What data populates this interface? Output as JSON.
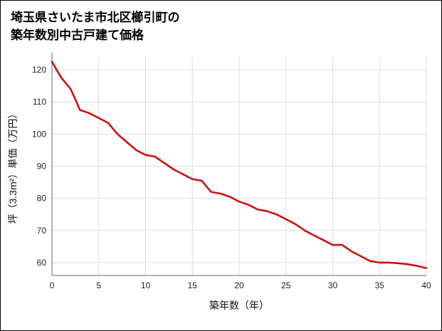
{
  "title": {
    "line1": "埼玉県さいたま市北区櫛引町の",
    "line2": "築年数別中古戸建て価格"
  },
  "chart_data": {
    "type": "line",
    "title": "埼玉県さいたま市北区櫛引町の築年数別中古戸建て価格",
    "xlabel": "築年数（年）",
    "ylabel": "坪（3.3m²）単価（万円）",
    "xlim": [
      0,
      40
    ],
    "ylim": [
      56,
      124
    ],
    "xticks": [
      0,
      5,
      10,
      15,
      20,
      25,
      30,
      35,
      40
    ],
    "yticks": [
      60,
      70,
      80,
      90,
      100,
      110,
      120
    ],
    "grid": true,
    "legend": "none",
    "line_color": "#cc1111",
    "grid_color": "#dddddd",
    "axis_color": "#999999",
    "x": [
      0,
      1,
      2,
      3,
      4,
      5,
      6,
      7,
      8,
      9,
      10,
      11,
      12,
      13,
      14,
      15,
      16,
      17,
      18,
      19,
      20,
      21,
      22,
      23,
      24,
      25,
      26,
      27,
      28,
      29,
      30,
      31,
      32,
      33,
      34,
      35,
      36,
      37,
      38,
      39,
      40
    ],
    "values": [
      122.5,
      117.5,
      114,
      107.5,
      106.5,
      105,
      103.5,
      100,
      97.5,
      95,
      93.5,
      93,
      91,
      89,
      87.5,
      86,
      85.5,
      82,
      81.5,
      80.5,
      79,
      78,
      76.5,
      76,
      75,
      73.5,
      72,
      70,
      68.5,
      67,
      65.5,
      65.5,
      63.5,
      62,
      60.5,
      60,
      60,
      59.8,
      59.5,
      59,
      58.3
    ]
  }
}
